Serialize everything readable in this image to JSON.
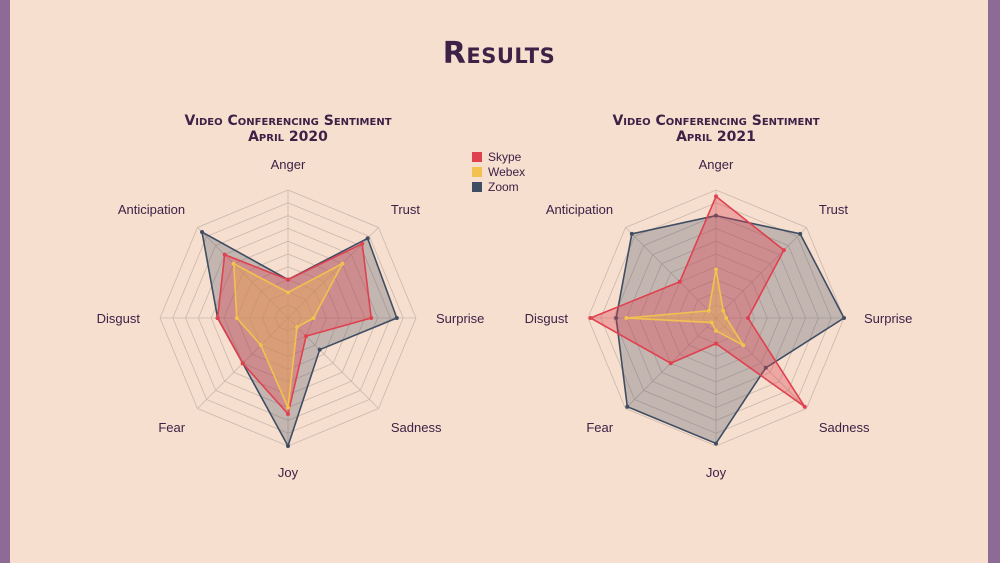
{
  "title": "Results",
  "colors": {
    "Skype": "#e0414f",
    "Webex": "#f2c14e",
    "Zoom": "#3f4d63"
  },
  "legend": [
    {
      "name": "Skype",
      "color": "#e0414f"
    },
    {
      "name": "Webex",
      "color": "#f2c14e"
    },
    {
      "name": "Zoom",
      "color": "#3f4d63"
    }
  ],
  "chart_data": [
    {
      "type": "radar",
      "title_line1": "Video Conferencing Sentiment",
      "title_line2": "April 2020",
      "axes": [
        "Anger",
        "Trust",
        "Surprise",
        "Sadness",
        "Joy",
        "Fear",
        "Disgust",
        "Anticipation"
      ],
      "range": [
        0,
        10
      ],
      "grid_levels": 10,
      "series": [
        {
          "name": "Skype",
          "values": [
            3,
            8.2,
            6.5,
            2,
            7.5,
            5,
            5.5,
            7
          ]
        },
        {
          "name": "Webex",
          "values": [
            2,
            6,
            2,
            1,
            7,
            3,
            4,
            6
          ]
        },
        {
          "name": "Zoom",
          "values": [
            3,
            8.8,
            8.5,
            3.5,
            10,
            5,
            5.5,
            9.5
          ]
        }
      ]
    },
    {
      "type": "radar",
      "title_line1": "Video Conferencing Sentiment",
      "title_line2": "April 2021",
      "axes": [
        "Anger",
        "Trust",
        "Surprise",
        "Sadness",
        "Joy",
        "Fear",
        "Disgust",
        "Anticipation"
      ],
      "range": [
        0,
        10
      ],
      "grid_levels": 10,
      "series": [
        {
          "name": "Skype",
          "values": [
            9.5,
            7.5,
            2.5,
            9.8,
            2,
            5,
            9.8,
            4
          ]
        },
        {
          "name": "Webex",
          "values": [
            3.8,
            0.8,
            0.8,
            3,
            1,
            0.5,
            7,
            0.8
          ]
        },
        {
          "name": "Zoom",
          "values": [
            8,
            9.3,
            10,
            5.5,
            9.8,
            9.8,
            7.8,
            9.3
          ]
        }
      ]
    }
  ]
}
